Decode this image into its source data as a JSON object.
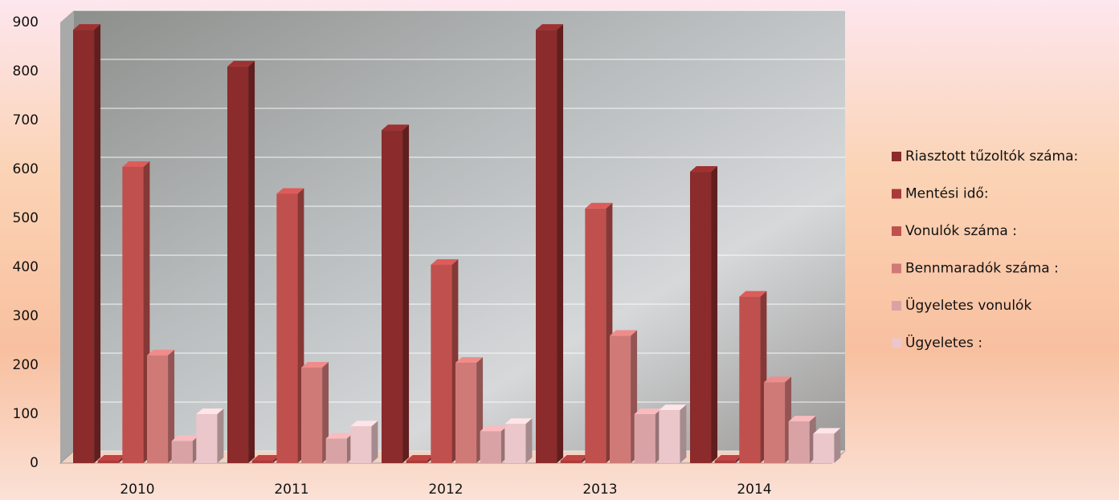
{
  "chart_data": {
    "type": "bar3d",
    "categories": [
      "2010",
      "2011",
      "2012",
      "2013",
      "2014"
    ],
    "series": [
      {
        "name": "Riasztott tűzoltók száma:",
        "color": "#8b2b2b",
        "values": [
          885,
          810,
          680,
          885,
          595
        ]
      },
      {
        "name": "Mentési idő:",
        "color": "#a83a3a",
        "values": [
          5,
          5,
          5,
          5,
          5
        ]
      },
      {
        "name": "Vonulók száma :",
        "color": "#c0504d",
        "values": [
          605,
          550,
          405,
          520,
          340
        ]
      },
      {
        "name": "Bennmaradók száma :",
        "color": "#d07a78",
        "values": [
          220,
          195,
          205,
          260,
          165
        ]
      },
      {
        "name": "Ügyeletes vonulók",
        "color": "#d9a3a6",
        "values": [
          45,
          50,
          65,
          100,
          85
        ]
      },
      {
        "name": "Ügyeletes :",
        "color": "#ebc6ca",
        "values": [
          100,
          75,
          80,
          108,
          60
        ]
      }
    ],
    "ylim": [
      0,
      900
    ],
    "yticks": [
      0,
      100,
      200,
      300,
      400,
      500,
      600,
      700,
      800,
      900
    ],
    "grid": true,
    "legend": "right"
  }
}
